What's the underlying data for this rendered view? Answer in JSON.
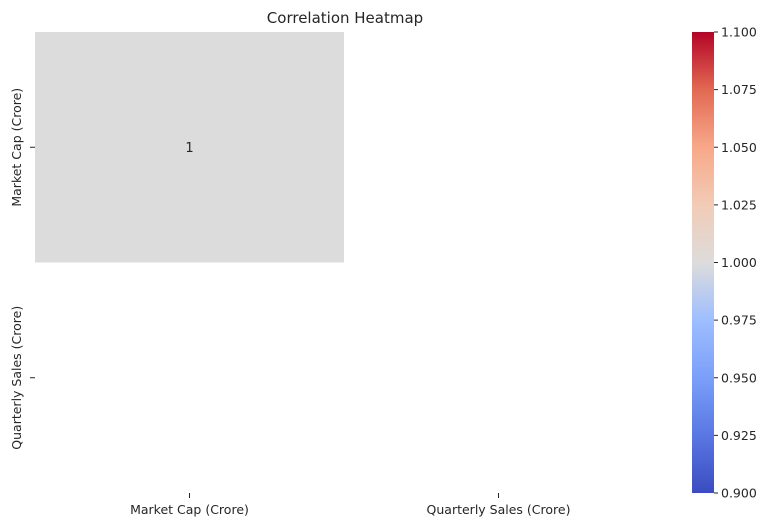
{
  "chart_data": {
    "type": "heatmap",
    "title": "Correlation Heatmap",
    "x_labels": [
      "Market Cap (Crore)",
      "Quarterly Sales (Crore)"
    ],
    "y_labels": [
      "Market Cap (Crore)",
      "Quarterly Sales (Crore)"
    ],
    "matrix": [
      [
        1,
        null
      ],
      [
        null,
        null
      ]
    ],
    "annotations": [
      [
        "1",
        ""
      ],
      [
        "",
        ""
      ]
    ],
    "colormap": "coolwarm",
    "vmin": 0.9,
    "vmax": 1.1,
    "colorbar_ticks": [
      "0.900",
      "0.925",
      "0.950",
      "0.975",
      "1.000",
      "1.025",
      "1.050",
      "1.075",
      "1.100"
    ],
    "colors": {
      "low": "#3b4cc0",
      "mid": "#dddcdc",
      "high": "#b40426"
    }
  }
}
